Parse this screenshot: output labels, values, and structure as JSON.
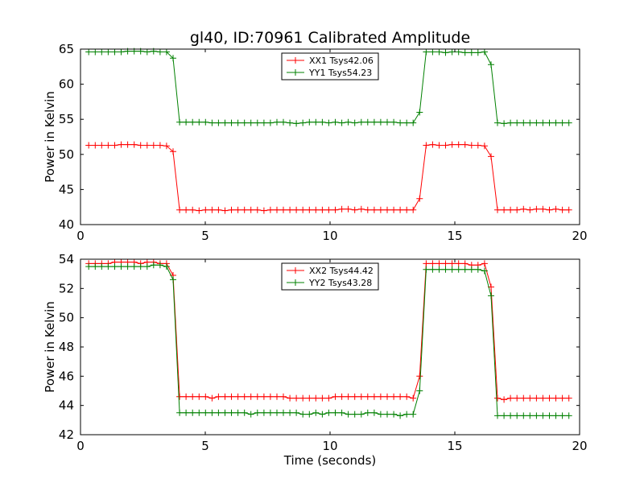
{
  "chart_data": [
    {
      "type": "line",
      "title": "gl40, ID:70961 Calibrated Amplitude",
      "xlabel": "",
      "ylabel": "Power in Kelvin",
      "xlim": [
        0,
        20
      ],
      "ylim": [
        40,
        65
      ],
      "xticks": [
        "0",
        "5",
        "10",
        "15",
        "20"
      ],
      "yticks": [
        "40",
        "45",
        "50",
        "55",
        "60",
        "65"
      ],
      "grid": false,
      "legend": "top-center",
      "series": [
        {
          "name": "XX1 Tsys42.06",
          "color": "#ff0000",
          "x": [
            0.33,
            0.59,
            0.85,
            1.11,
            1.37,
            1.63,
            1.89,
            2.15,
            2.41,
            2.67,
            2.93,
            3.19,
            3.45,
            3.71,
            3.97,
            4.23,
            4.49,
            4.75,
            5.01,
            5.27,
            5.53,
            5.79,
            6.05,
            6.31,
            6.57,
            6.83,
            7.09,
            7.35,
            7.61,
            7.87,
            8.13,
            8.39,
            8.65,
            8.91,
            9.17,
            9.43,
            9.69,
            9.95,
            10.21,
            10.47,
            10.73,
            10.99,
            11.25,
            11.51,
            11.77,
            12.03,
            12.29,
            12.55,
            12.81,
            13.07,
            13.33,
            13.59,
            13.85,
            14.11,
            14.37,
            14.63,
            14.89,
            15.15,
            15.41,
            15.67,
            15.93,
            16.19,
            16.45,
            16.71,
            16.97,
            17.23,
            17.49,
            17.75,
            18.01,
            18.27,
            18.53,
            18.79,
            19.05,
            19.31,
            19.57
          ],
          "y": [
            51.3,
            51.3,
            51.3,
            51.3,
            51.3,
            51.4,
            51.4,
            51.4,
            51.3,
            51.3,
            51.3,
            51.3,
            51.2,
            50.4,
            42.1,
            42.1,
            42.1,
            42.0,
            42.1,
            42.1,
            42.1,
            42.0,
            42.1,
            42.1,
            42.1,
            42.1,
            42.1,
            42.0,
            42.1,
            42.1,
            42.1,
            42.1,
            42.1,
            42.1,
            42.1,
            42.1,
            42.1,
            42.1,
            42.1,
            42.2,
            42.2,
            42.1,
            42.2,
            42.1,
            42.1,
            42.1,
            42.1,
            42.1,
            42.1,
            42.1,
            42.1,
            43.7,
            51.3,
            51.4,
            51.3,
            51.3,
            51.4,
            51.4,
            51.4,
            51.3,
            51.3,
            51.2,
            49.7,
            42.1,
            42.1,
            42.1,
            42.1,
            42.2,
            42.1,
            42.2,
            42.2,
            42.1,
            42.2,
            42.1,
            42.1
          ]
        },
        {
          "name": "YY1 Tsys54.23",
          "color": "#008000",
          "x": [
            0.33,
            0.59,
            0.85,
            1.11,
            1.37,
            1.63,
            1.89,
            2.15,
            2.41,
            2.67,
            2.93,
            3.19,
            3.45,
            3.71,
            3.97,
            4.23,
            4.49,
            4.75,
            5.01,
            5.27,
            5.53,
            5.79,
            6.05,
            6.31,
            6.57,
            6.83,
            7.09,
            7.35,
            7.61,
            7.87,
            8.13,
            8.39,
            8.65,
            8.91,
            9.17,
            9.43,
            9.69,
            9.95,
            10.21,
            10.47,
            10.73,
            10.99,
            11.25,
            11.51,
            11.77,
            12.03,
            12.29,
            12.55,
            12.81,
            13.07,
            13.33,
            13.59,
            13.85,
            14.11,
            14.37,
            14.63,
            14.89,
            15.15,
            15.41,
            15.67,
            15.93,
            16.19,
            16.45,
            16.71,
            16.97,
            17.23,
            17.49,
            17.75,
            18.01,
            18.27,
            18.53,
            18.79,
            19.05,
            19.31,
            19.57
          ],
          "y": [
            64.6,
            64.6,
            64.6,
            64.6,
            64.6,
            64.6,
            64.7,
            64.7,
            64.7,
            64.6,
            64.7,
            64.6,
            64.6,
            63.7,
            54.6,
            54.6,
            54.6,
            54.6,
            54.6,
            54.5,
            54.5,
            54.5,
            54.5,
            54.5,
            54.5,
            54.5,
            54.5,
            54.5,
            54.5,
            54.6,
            54.6,
            54.5,
            54.4,
            54.5,
            54.6,
            54.6,
            54.6,
            54.5,
            54.6,
            54.5,
            54.6,
            54.5,
            54.6,
            54.6,
            54.6,
            54.6,
            54.6,
            54.6,
            54.5,
            54.5,
            54.5,
            56.0,
            64.6,
            64.6,
            64.6,
            64.5,
            64.6,
            64.6,
            64.5,
            64.5,
            64.5,
            64.6,
            62.8,
            54.5,
            54.4,
            54.5,
            54.5,
            54.5,
            54.5,
            54.5,
            54.5,
            54.5,
            54.5,
            54.5,
            54.5
          ]
        }
      ]
    },
    {
      "type": "line",
      "title": "",
      "xlabel": "Time (seconds)",
      "ylabel": "Power in Kelvin",
      "xlim": [
        0,
        20
      ],
      "ylim": [
        42,
        54
      ],
      "xticks": [
        "0",
        "5",
        "10",
        "15",
        "20"
      ],
      "yticks": [
        "42",
        "44",
        "46",
        "48",
        "50",
        "52",
        "54"
      ],
      "grid": false,
      "legend": "top-center",
      "series": [
        {
          "name": "XX2 Tsys44.42",
          "color": "#ff0000",
          "x": [
            0.33,
            0.59,
            0.85,
            1.11,
            1.37,
            1.63,
            1.89,
            2.15,
            2.41,
            2.67,
            2.93,
            3.19,
            3.45,
            3.71,
            3.97,
            4.23,
            4.49,
            4.75,
            5.01,
            5.27,
            5.53,
            5.79,
            6.05,
            6.31,
            6.57,
            6.83,
            7.09,
            7.35,
            7.61,
            7.87,
            8.13,
            8.39,
            8.65,
            8.91,
            9.17,
            9.43,
            9.69,
            9.95,
            10.21,
            10.47,
            10.73,
            10.99,
            11.25,
            11.51,
            11.77,
            12.03,
            12.29,
            12.55,
            12.81,
            13.07,
            13.33,
            13.59,
            13.85,
            14.11,
            14.37,
            14.63,
            14.89,
            15.15,
            15.41,
            15.67,
            15.93,
            16.19,
            16.45,
            16.71,
            16.97,
            17.23,
            17.49,
            17.75,
            18.01,
            18.27,
            18.53,
            18.79,
            19.05,
            19.31,
            19.57
          ],
          "y": [
            53.7,
            53.7,
            53.7,
            53.7,
            53.8,
            53.8,
            53.8,
            53.8,
            53.7,
            53.8,
            53.8,
            53.7,
            53.7,
            52.9,
            44.6,
            44.6,
            44.6,
            44.6,
            44.6,
            44.5,
            44.6,
            44.6,
            44.6,
            44.6,
            44.6,
            44.6,
            44.6,
            44.6,
            44.6,
            44.6,
            44.6,
            44.5,
            44.5,
            44.5,
            44.5,
            44.5,
            44.5,
            44.5,
            44.6,
            44.6,
            44.6,
            44.6,
            44.6,
            44.6,
            44.6,
            44.6,
            44.6,
            44.6,
            44.6,
            44.6,
            44.5,
            46.0,
            53.7,
            53.7,
            53.7,
            53.7,
            53.7,
            53.7,
            53.7,
            53.6,
            53.6,
            53.7,
            52.1,
            44.5,
            44.4,
            44.5,
            44.5,
            44.5,
            44.5,
            44.5,
            44.5,
            44.5,
            44.5,
            44.5,
            44.5
          ]
        },
        {
          "name": "YY2 Tsys43.28",
          "color": "#008000",
          "x": [
            0.33,
            0.59,
            0.85,
            1.11,
            1.37,
            1.63,
            1.89,
            2.15,
            2.41,
            2.67,
            2.93,
            3.19,
            3.45,
            3.71,
            3.97,
            4.23,
            4.49,
            4.75,
            5.01,
            5.27,
            5.53,
            5.79,
            6.05,
            6.31,
            6.57,
            6.83,
            7.09,
            7.35,
            7.61,
            7.87,
            8.13,
            8.39,
            8.65,
            8.91,
            9.17,
            9.43,
            9.69,
            9.95,
            10.21,
            10.47,
            10.73,
            10.99,
            11.25,
            11.51,
            11.77,
            12.03,
            12.29,
            12.55,
            12.81,
            13.07,
            13.33,
            13.59,
            13.85,
            14.11,
            14.37,
            14.63,
            14.89,
            15.15,
            15.41,
            15.67,
            15.93,
            16.19,
            16.45,
            16.71,
            16.97,
            17.23,
            17.49,
            17.75,
            18.01,
            18.27,
            18.53,
            18.79,
            19.05,
            19.31,
            19.57
          ],
          "y": [
            53.5,
            53.5,
            53.5,
            53.5,
            53.5,
            53.5,
            53.5,
            53.5,
            53.5,
            53.5,
            53.6,
            53.6,
            53.5,
            52.6,
            43.5,
            43.5,
            43.5,
            43.5,
            43.5,
            43.5,
            43.5,
            43.5,
            43.5,
            43.5,
            43.5,
            43.4,
            43.5,
            43.5,
            43.5,
            43.5,
            43.5,
            43.5,
            43.5,
            43.4,
            43.4,
            43.5,
            43.4,
            43.5,
            43.5,
            43.5,
            43.4,
            43.4,
            43.4,
            43.5,
            43.5,
            43.4,
            43.4,
            43.4,
            43.3,
            43.4,
            43.4,
            45.0,
            53.3,
            53.3,
            53.3,
            53.3,
            53.3,
            53.3,
            53.3,
            53.3,
            53.3,
            53.2,
            51.5,
            43.3,
            43.3,
            43.3,
            43.3,
            43.3,
            43.3,
            43.3,
            43.3,
            43.3,
            43.3,
            43.3,
            43.3
          ]
        }
      ]
    }
  ]
}
